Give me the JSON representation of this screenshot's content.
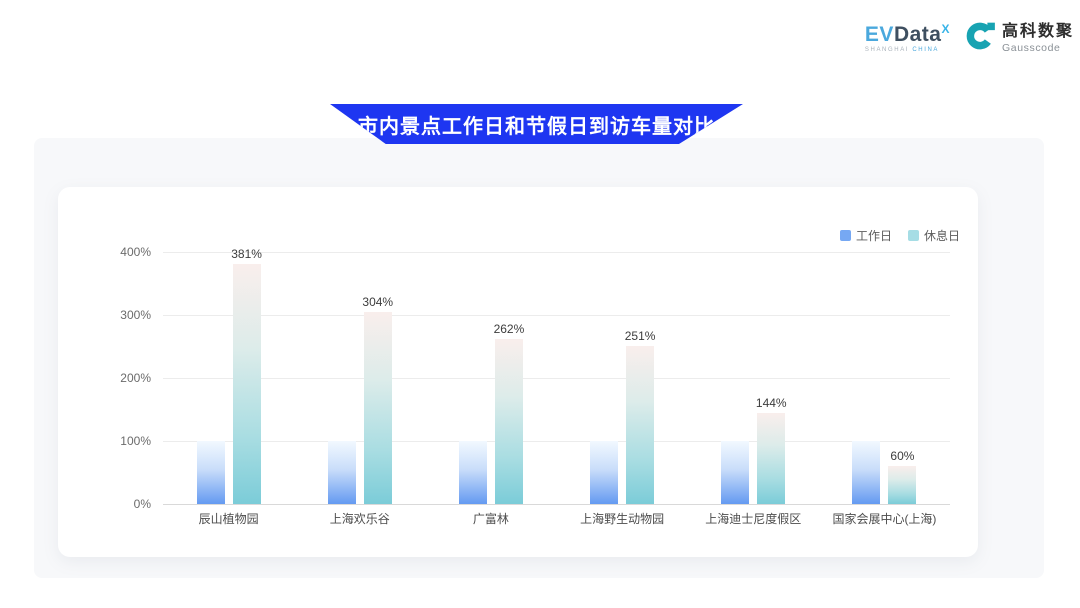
{
  "header": {
    "evdata": {
      "ev": "EV",
      "data": "Data",
      "sup": "X",
      "subtext_left": "SHANGHAI ",
      "subtext_right": "CHINA"
    },
    "gausscode": {
      "cn": "高科数聚",
      "en": "Gausscode"
    }
  },
  "banner": {
    "title": "市内景点工作日和节假日到访车量对比"
  },
  "chart_data": {
    "type": "bar",
    "title": "市内景点工作日和节假日到访车量对比",
    "categories": [
      "辰山植物园",
      "上海欢乐谷",
      "广富林",
      "上海野生动物园",
      "上海迪士尼度假区",
      "国家会展中心(上海)"
    ],
    "series": [
      {
        "name": "工作日",
        "values": [
          100,
          100,
          100,
          100,
          100,
          100
        ],
        "legend_color": "#76a8f3",
        "gradient_top": "#f2f9ff",
        "gradient_bottom": "#649af1",
        "show_labels": false
      },
      {
        "name": "休息日",
        "values": [
          381,
          304,
          262,
          251,
          144,
          60
        ],
        "legend_color": "#a6dde5",
        "gradient_top": "#f9eeec",
        "gradient_bottom": "#7bccd8",
        "show_labels": true
      }
    ],
    "value_suffix": "%",
    "y_ticks": [
      "400%",
      "300%",
      "200%",
      "100%",
      "0%"
    ],
    "ylim": [
      0,
      400
    ],
    "xlabel": "",
    "ylabel": "",
    "grid": true,
    "legend_position": "top-right"
  },
  "colors": {
    "banner_bg": "#1e36f1",
    "panel_bg": "#f7f8fa",
    "card_bg": "#ffffff",
    "gausscode_teal": "#17a3b2",
    "evdata_blue": "#4aa8dd",
    "evdata_dark": "#3e4f60"
  }
}
